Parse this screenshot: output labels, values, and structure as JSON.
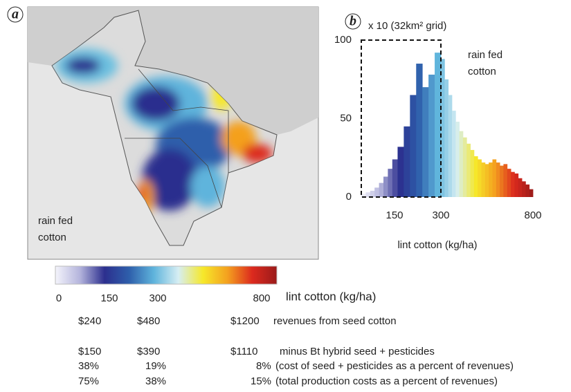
{
  "panel_a": {
    "label": "a",
    "map_label": [
      "rain fed",
      "cotton"
    ]
  },
  "chart_data": {
    "type": "histogram",
    "panel_label": "b",
    "ylabel": "x 10 (32km² grid)",
    "xlabel": "lint cotton (kg/ha)",
    "annotation": [
      "rain fed",
      "cotton"
    ],
    "bins": [
      0,
      20,
      40,
      60,
      80,
      100,
      120,
      140,
      160,
      180,
      200,
      220,
      240,
      260,
      280,
      300,
      320,
      340,
      360,
      380,
      400,
      420,
      440,
      460,
      480,
      500,
      520,
      540,
      560,
      580,
      600,
      620,
      640,
      660,
      680,
      700,
      720,
      740,
      760,
      780,
      800
    ],
    "counts": [
      2,
      3,
      4,
      6,
      9,
      13,
      18,
      24,
      32,
      45,
      65,
      85,
      70,
      78,
      92,
      88,
      75,
      65,
      55,
      48,
      42,
      38,
      34,
      30,
      26,
      24,
      22,
      21,
      22,
      24,
      22,
      20,
      21,
      18,
      16,
      15,
      12,
      10,
      8,
      5
    ],
    "xlim": [
      0,
      800
    ],
    "xticks": [
      150,
      300,
      800
    ],
    "ylim": [
      0,
      100
    ],
    "yticks": [
      0,
      50,
      100
    ],
    "highlight_range": [
      0,
      300
    ],
    "colormap": [
      "#f4f4fb",
      "#b4b4dc",
      "#2c2f8e",
      "#2e5fab",
      "#5fb4dc",
      "#d6eef3",
      "#f6e82a",
      "#f4a01f",
      "#dc2a1e",
      "#9a1a1a"
    ]
  },
  "colorbar": {
    "label": "lint cotton (kg/ha)",
    "ticks": [
      0,
      150,
      300,
      800
    ]
  },
  "table": {
    "rows": [
      [
        "$240",
        "$480",
        "$1200",
        "revenues from seed cotton"
      ],
      [
        "$150",
        "$390",
        "$1110",
        "minus Bt hybrid seed + pesticides"
      ],
      [
        "38%",
        "19%",
        "8%",
        "(cost of seed + pesticides as a percent of revenues)"
      ],
      [
        "75%",
        "38%",
        "15%",
        "(total production costs as a percent of revenues)"
      ]
    ]
  }
}
